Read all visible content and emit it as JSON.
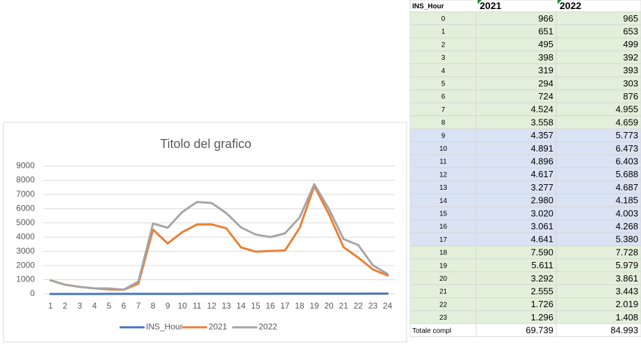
{
  "chart_data": {
    "type": "line",
    "title": "Titolo del grafico",
    "categories": [
      "1",
      "2",
      "3",
      "4",
      "5",
      "6",
      "7",
      "8",
      "9",
      "10",
      "11",
      "12",
      "13",
      "14",
      "15",
      "16",
      "17",
      "18",
      "19",
      "20",
      "21",
      "22",
      "23",
      "24"
    ],
    "series": [
      {
        "name": "INS_Hour",
        "color": "#4472c4",
        "values": [
          0,
          1,
          2,
          3,
          4,
          5,
          6,
          7,
          8,
          9,
          10,
          11,
          12,
          13,
          14,
          15,
          16,
          17,
          18,
          19,
          20,
          21,
          22,
          23
        ]
      },
      {
        "name": "2021",
        "color": "#ed7d31",
        "values": [
          966,
          651,
          495,
          398,
          319,
          294,
          724,
          4524,
          3558,
          4357,
          4891,
          4896,
          4617,
          3277,
          2980,
          3020,
          3061,
          4641,
          7590,
          5611,
          3292,
          2555,
          1726,
          1296
        ]
      },
      {
        "name": "2022",
        "color": "#a5a5a5",
        "values": [
          965,
          653,
          499,
          392,
          393,
          303,
          876,
          4955,
          4659,
          5773,
          6473,
          6403,
          5688,
          4687,
          4185,
          4003,
          4268,
          5380,
          7728,
          5979,
          3861,
          3443,
          2019,
          1408
        ]
      }
    ],
    "ylim": [
      0,
      9000
    ],
    "yticks": [
      0,
      1000,
      2000,
      3000,
      4000,
      5000,
      6000,
      7000,
      8000,
      9000
    ],
    "grid": true,
    "legend": "bottom"
  },
  "table": {
    "header": [
      "INS_Hour",
      "2021",
      "2022"
    ],
    "rows": [
      [
        "0",
        "966",
        "965"
      ],
      [
        "1",
        "651",
        "653"
      ],
      [
        "2",
        "495",
        "499"
      ],
      [
        "3",
        "398",
        "392"
      ],
      [
        "4",
        "319",
        "393"
      ],
      [
        "5",
        "294",
        "303"
      ],
      [
        "6",
        "724",
        "876"
      ],
      [
        "7",
        "4.524",
        "4.955"
      ],
      [
        "8",
        "3.558",
        "4.659"
      ],
      [
        "9",
        "4.357",
        "5.773"
      ],
      [
        "10",
        "4.891",
        "6.473"
      ],
      [
        "11",
        "4.896",
        "6.403"
      ],
      [
        "12",
        "4.617",
        "5.688"
      ],
      [
        "13",
        "3.277",
        "4.687"
      ],
      [
        "14",
        "2.980",
        "4.185"
      ],
      [
        "15",
        "3.020",
        "4.003"
      ],
      [
        "16",
        "3.061",
        "4.268"
      ],
      [
        "17",
        "4.641",
        "5.380"
      ],
      [
        "18",
        "7.590",
        "7.728"
      ],
      [
        "19",
        "5.611",
        "5.979"
      ],
      [
        "20",
        "3.292",
        "3.861"
      ],
      [
        "21",
        "2.555",
        "3.443"
      ],
      [
        "22",
        "1.726",
        "2.019"
      ],
      [
        "23",
        "1.296",
        "1.408"
      ]
    ],
    "total": [
      "Totale compl",
      "69.739",
      "84.993"
    ]
  }
}
